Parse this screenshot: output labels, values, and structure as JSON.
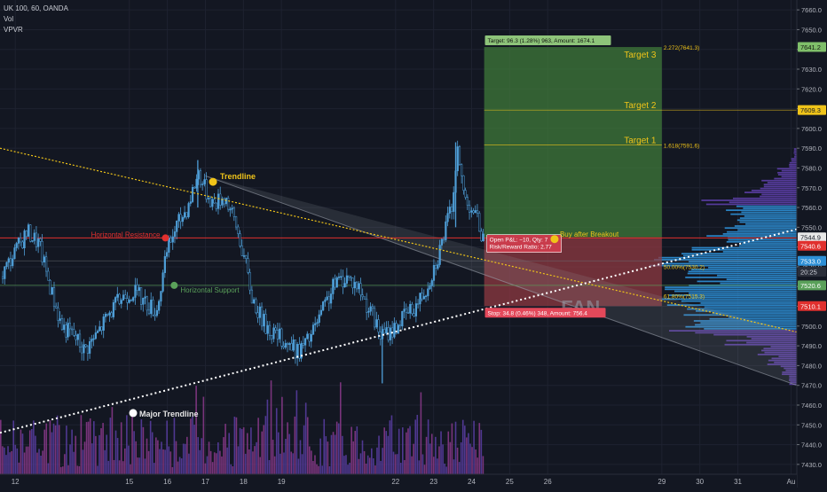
{
  "header": {
    "symbol": "UK 100, 60, OANDA",
    "vol_label": "Vol",
    "vpvr_label": "VPVR"
  },
  "colors": {
    "background": "#131722",
    "grid": "#1e2230",
    "axis_text": "#b2b5be",
    "candle": "#4f9fd8",
    "candle_dark": "#0d1320",
    "resistance": "#e0302e",
    "support": "#5aa15a",
    "trendline": "#f0c419",
    "major_trendline": "#ffffff",
    "target_zone": "#3f7a3a",
    "stop_zone": "#8f3a42",
    "fan": "#9aa0ab",
    "vpvr_value_area": "#2d8fd6",
    "vpvr_outer": "#5d3fa8",
    "vol_up": "#5a3ea5",
    "vol_down": "#8c3a8c"
  },
  "annotations": {
    "trendline": "Trendline",
    "horizontal_resistance": "Horizontal Resistance",
    "horizontal_support": "Horizontal Support",
    "major_trendline": "Major Trendline",
    "buy_after_breakout": "Buy after Breakout",
    "target1": "Target 1",
    "target2": "Target 2",
    "target3": "Target 3",
    "fan": "FAN",
    "target_banner": "Target: 96.3 (1.28%) 963, Amount: 1674.1",
    "stop_banner": "Stop: 34.8 (0.46%) 348, Amount: 756.4",
    "open_pnl": "Open P&L: −10, Qty: 7",
    "risk_reward": "Risk/Reward Ratio: 2.77",
    "fib_2272": "2.272(7641.3)",
    "fib_1618": "1.618(7591.6)",
    "fib_050": "50.00%(7530.2)",
    "fib_0618": "61.80%(7515.3)"
  },
  "price_markers": [
    {
      "label": "7641.2",
      "value": 7641.2,
      "bg": "#7fbf6a",
      "fg": "#10140e"
    },
    {
      "label": "7609.3",
      "value": 7609.3,
      "bg": "#f0c419",
      "fg": "#131722"
    },
    {
      "label": "7544.9",
      "value": 7544.9,
      "bg": "#e8e8e8",
      "fg": "#131722"
    },
    {
      "label": "7540.6",
      "value": 7540.6,
      "bg": "#e0302e",
      "fg": "#ffffff"
    },
    {
      "label": "7533.0",
      "value": 7533.0,
      "bg": "#2d8fd6",
      "fg": "#ffffff"
    },
    {
      "label": "20:25",
      "value": 7527.5,
      "bg": "#2a2e39",
      "fg": "#d1d4dc"
    },
    {
      "label": "7520.6",
      "value": 7520.6,
      "bg": "#5aa15a",
      "fg": "#ffffff"
    },
    {
      "label": "7510.1",
      "value": 7510.1,
      "bg": "#e0302e",
      "fg": "#ffffff"
    }
  ],
  "chart_data": {
    "type": "candlestick",
    "symbol": "UK 100",
    "interval": "60",
    "source": "OANDA",
    "y_range": [
      7425,
      7665
    ],
    "x_range_days": [
      11.6,
      32.55
    ],
    "price_ticks": [
      7430,
      7440,
      7450,
      7460,
      7470,
      7480,
      7490,
      7500,
      7510,
      7520,
      7530,
      7540,
      7550,
      7560,
      7570,
      7580,
      7590,
      7600,
      7610,
      7620,
      7630,
      7640,
      7650,
      7660
    ],
    "date_ticks": [
      {
        "label": "12",
        "day": 12
      },
      {
        "label": "15",
        "day": 15
      },
      {
        "label": "16",
        "day": 16
      },
      {
        "label": "17",
        "day": 17
      },
      {
        "label": "18",
        "day": 18
      },
      {
        "label": "19",
        "day": 19
      },
      {
        "label": "22",
        "day": 22
      },
      {
        "label": "23",
        "day": 23
      },
      {
        "label": "24",
        "day": 24
      },
      {
        "label": "25",
        "day": 25
      },
      {
        "label": "26",
        "day": 26
      },
      {
        "label": "29",
        "day": 29
      },
      {
        "label": "30",
        "day": 30
      },
      {
        "label": "31",
        "day": 31
      },
      {
        "label": "Au",
        "day": 32.4
      }
    ],
    "close_path": [
      [
        11.6,
        7525
      ],
      [
        11.9,
        7535
      ],
      [
        12.3,
        7548
      ],
      [
        12.6,
        7542
      ],
      [
        12.9,
        7520
      ],
      [
        13.2,
        7500
      ],
      [
        13.5,
        7496
      ],
      [
        13.8,
        7488
      ],
      [
        14.1,
        7495
      ],
      [
        14.4,
        7505
      ],
      [
        14.8,
        7515
      ],
      [
        15.1,
        7518
      ],
      [
        15.4,
        7512
      ],
      [
        15.7,
        7508
      ],
      [
        16.0,
        7540
      ],
      [
        16.2,
        7550
      ],
      [
        16.5,
        7560
      ],
      [
        16.8,
        7578
      ],
      [
        17.0,
        7568
      ],
      [
        17.2,
        7562
      ],
      [
        17.5,
        7566
      ],
      [
        17.8,
        7550
      ],
      [
        18.0,
        7535
      ],
      [
        18.2,
        7515
      ],
      [
        18.5,
        7502
      ],
      [
        18.8,
        7496
      ],
      [
        19.1,
        7492
      ],
      [
        19.4,
        7487
      ],
      [
        19.7,
        7493
      ],
      [
        20.0,
        7505
      ],
      [
        20.4,
        7522
      ],
      [
        20.7,
        7525
      ],
      [
        21.0,
        7520
      ],
      [
        21.3,
        7508
      ],
      [
        21.6,
        7495
      ],
      [
        21.9,
        7498
      ],
      [
        22.2,
        7505
      ],
      [
        22.5,
        7510
      ],
      [
        22.8,
        7520
      ],
      [
        23.1,
        7536
      ],
      [
        23.3,
        7550
      ],
      [
        23.45,
        7560
      ],
      [
        23.6,
        7588
      ],
      [
        23.8,
        7565
      ],
      [
        24.0,
        7560
      ],
      [
        24.2,
        7550
      ],
      [
        24.33,
        7541
      ]
    ],
    "spikes": [
      {
        "day": 21.65,
        "low": 7471,
        "high": 7500
      },
      {
        "day": 23.58,
        "low": 7550,
        "high": 7593
      },
      {
        "day": 16.8,
        "low": 7560,
        "high": 7584
      }
    ],
    "lines": [
      {
        "name": "Horizontal Resistance",
        "type": "horizontal",
        "price": 7544.6
      },
      {
        "name": "Horizontal Support",
        "type": "horizontal",
        "price": 7520.6
      },
      {
        "name": "Trendline",
        "type": "trend",
        "from": [
          11.6,
          7590
        ],
        "to": [
          32.55,
          7497
        ]
      },
      {
        "name": "Major Trendline",
        "type": "trend",
        "from": [
          11.6,
          7446
        ],
        "to": [
          32.55,
          7549
        ]
      }
    ],
    "position": {
      "side": "long",
      "entry": 7544.9,
      "stop": 7510.1,
      "target": 7641.2,
      "targets": [
        {
          "name": "Target 1",
          "price": 7591.6
        },
        {
          "name": "Target 2",
          "price": 7609.3
        },
        {
          "name": "Target 3",
          "price": 7641.2
        }
      ],
      "risk_reward": 2.77
    },
    "fib_levels": [
      {
        "label": "2.272",
        "price": 7641.3
      },
      {
        "label": "1.618",
        "price": 7591.6
      },
      {
        "label": "50.00%",
        "price": 7530.2
      },
      {
        "label": "61.80%",
        "price": 7515.3
      }
    ],
    "vpvr": {
      "point_of_control": 7533.0,
      "profile": [
        [
          7470,
          0.05
        ],
        [
          7475,
          0.1
        ],
        [
          7480,
          0.18
        ],
        [
          7485,
          0.24
        ],
        [
          7490,
          0.45
        ],
        [
          7495,
          0.78
        ],
        [
          7500,
          0.62
        ],
        [
          7505,
          0.7
        ],
        [
          7510,
          0.85
        ],
        [
          7515,
          0.8
        ],
        [
          7520,
          0.68
        ],
        [
          7525,
          0.74
        ],
        [
          7530,
          0.95
        ],
        [
          7535,
          0.72
        ],
        [
          7540,
          0.52
        ],
        [
          7545,
          0.58
        ],
        [
          7550,
          0.38
        ],
        [
          7555,
          0.52
        ],
        [
          7560,
          0.6
        ],
        [
          7565,
          0.32
        ],
        [
          7570,
          0.22
        ],
        [
          7575,
          0.12
        ],
        [
          7580,
          0.05
        ],
        [
          7585,
          0.02
        ]
      ]
    },
    "volume_bars": 265
  }
}
